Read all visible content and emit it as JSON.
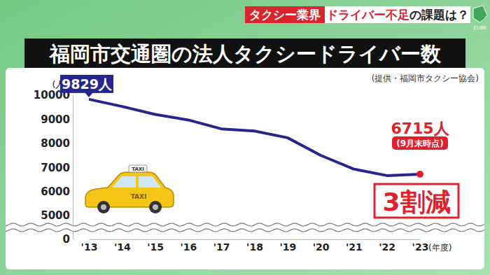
{
  "chart_data": {
    "type": "line",
    "title": "福岡市交通圏の法人タクシードライバー数",
    "source": "(提供・福岡市タクシー協会)",
    "y_label": "(人)",
    "x_label": "(年度)",
    "categories": [
      "'13",
      "'14",
      "'15",
      "'16",
      "'17",
      "'18",
      "'19",
      "'20",
      "'21",
      "'22",
      "'23"
    ],
    "values": [
      9829,
      9530,
      9200,
      8970,
      8600,
      8510,
      8230,
      7500,
      6930,
      6660,
      6715
    ],
    "value_labels": [
      "9829人",
      null,
      null,
      null,
      null,
      null,
      null,
      null,
      null,
      null,
      "6715人"
    ],
    "data_labels": true,
    "annotations": [
      "(9月末時点)",
      "3割減"
    ],
    "color": "#26268f",
    "ylim": [
      0,
      10000
    ],
    "yticks": [
      0,
      5000,
      6000,
      7000,
      8000,
      9000,
      10000
    ],
    "grid": false
  },
  "banner": {
    "tag": "タクシー業界",
    "highlight": "ドライバー不足",
    "rest": "の課題は？",
    "logo": "CUBE"
  },
  "illustration": {
    "sign": "TAXI"
  }
}
